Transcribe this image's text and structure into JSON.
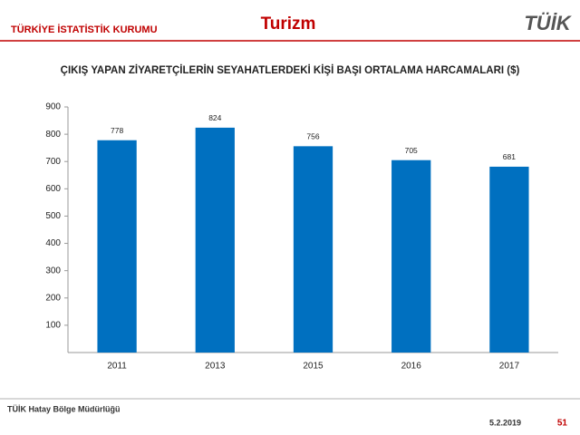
{
  "header": {
    "org": "TÜRKİYE İSTATİSTİK KURUMU",
    "topic": "Turizm",
    "logo": "TÜİK"
  },
  "chart_data": {
    "type": "bar",
    "title": "ÇIKIŞ YAPAN ZİYARETÇİLERİN SEYAHATLERDEKİ KİŞİ BAŞI ORTALAMA HARCAMALARI ($)",
    "categories": [
      "2011",
      "2013",
      "2015",
      "2016",
      "2017"
    ],
    "values": [
      778,
      824,
      756,
      705,
      681
    ],
    "color": "#0070c0",
    "ylim": [
      0,
      900
    ],
    "yticks": [
      100,
      200,
      300,
      400,
      500,
      600,
      700,
      800,
      900
    ],
    "grid": false
  },
  "footer": {
    "office": "TÜİK Hatay Bölge Müdürlüğü",
    "date": "5.2.2019",
    "page": "51"
  }
}
